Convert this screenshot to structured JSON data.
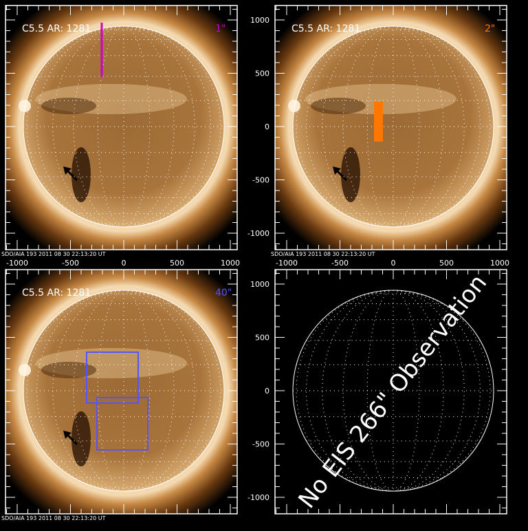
{
  "panels": [
    {
      "id": "tl",
      "label": "C5.5 AR: 1281",
      "size": "1\"",
      "size_color": "#cc00cc",
      "footer": "SDO/AIA 193 2011 08 30 22:13:20 UT",
      "has_sun": true,
      "overlay": "line"
    },
    {
      "id": "tr",
      "label": "C5.5 AR: 1281",
      "size": "2\"",
      "size_color": "#ff7700",
      "footer": "SDO/AIA 193 2011 08 30 22:13:20 UT",
      "has_sun": true,
      "overlay": "bar"
    },
    {
      "id": "bl",
      "label": "C5.5 AR: 1281",
      "size": "40\"",
      "size_color": "#5555ff",
      "footer": "SDO/AIA 193 2011 08 30 22:13:20 UT",
      "has_sun": true,
      "overlay": "boxes"
    },
    {
      "id": "br",
      "label": "",
      "size": "",
      "size_color": "#ffffff",
      "footer": "",
      "has_sun": false,
      "overlay": "none",
      "message": "No EIS 266\" Observation"
    }
  ],
  "x_ticks": [
    "-1000",
    "-500",
    "0",
    "500",
    "1000"
  ],
  "y_ticks": [
    "1000",
    "500",
    "0",
    "-500",
    "-1000"
  ],
  "colors": {
    "overlay_line": "#cc00cc",
    "overlay_bar": "#ff7700",
    "overlay_boxes": "#5555ff",
    "axes": "#ffffff"
  }
}
